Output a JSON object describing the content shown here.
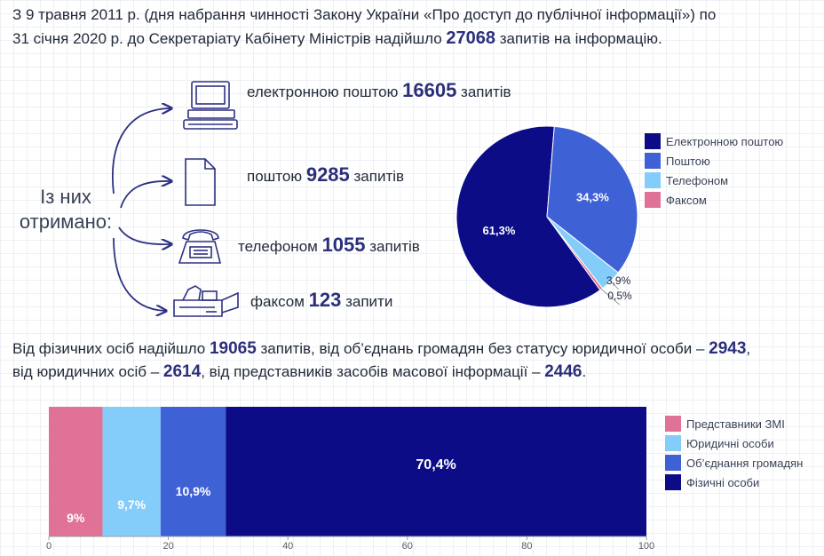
{
  "intro": {
    "line1": "З 9 травня 2011 р. (дня набрання чинності Закону України «Про доступ до публічної інформації») по",
    "line2_pre": "31 січня 2020 р. до Секретаріату Кабінету Міністрів надійшло ",
    "total": "27068",
    "line2_post": " запитів на інформацію."
  },
  "received_label": {
    "line1": "Із них",
    "line2": "отримано:"
  },
  "channels": [
    {
      "pre": "електронною поштою ",
      "value": "16605",
      "post": " запитів",
      "icon": "computer-icon"
    },
    {
      "pre": "поштою ",
      "value": "9285",
      "post": " запитів",
      "icon": "document-icon"
    },
    {
      "pre": "телефоном ",
      "value": "1055",
      "post": " запитів",
      "icon": "telephone-icon"
    },
    {
      "pre": "факсом ",
      "value": "123",
      "post": " запити",
      "icon": "fax-icon"
    }
  ],
  "persons": {
    "l1_a": "Від фізичних осіб надійшло ",
    "v1": "19065",
    "l1_b": " запитів, від об’єднань громадян без статусу юридичної особи – ",
    "v2": "2943",
    "l1_c": ",",
    "l2_a": "від юридичних осіб – ",
    "v3": "2614",
    "l2_b": ", від представників засобів масової інформації – ",
    "v4": "2446",
    "l2_c": "."
  },
  "chart_data": [
    {
      "type": "pie",
      "slices": [
        {
          "name": "Електронною поштою",
          "value": 61.3,
          "label": "61,3%",
          "color": "#0b0c86"
        },
        {
          "name": "Поштою",
          "value": 34.3,
          "label": "34,3%",
          "color": "#3f61d6"
        },
        {
          "name": "Телефоном",
          "value": 3.9,
          "label": "3,9%",
          "color": "#84ccfa"
        },
        {
          "name": "Факсом",
          "value": 0.5,
          "label": "0,5%",
          "color": "#e07197"
        }
      ],
      "legend": "right"
    },
    {
      "type": "bar",
      "orientation": "horizontal-stacked",
      "segments": [
        {
          "name": "Представники ЗМІ",
          "value": 9,
          "label": "9%",
          "color": "#e07197"
        },
        {
          "name": "Юридичні особи",
          "value": 9.7,
          "label": "9,7%",
          "color": "#84ccfa"
        },
        {
          "name": "Об’єднання громадян",
          "value": 10.9,
          "label": "10,9%",
          "color": "#3f61d6"
        },
        {
          "name": "Фізичні особи",
          "value": 70.4,
          "label": "70,4%",
          "color": "#0b0c86"
        }
      ],
      "xlim": [
        0,
        100
      ],
      "xticks": [
        "0",
        "20",
        "40",
        "60",
        "80",
        "100"
      ],
      "legend": "right"
    }
  ]
}
